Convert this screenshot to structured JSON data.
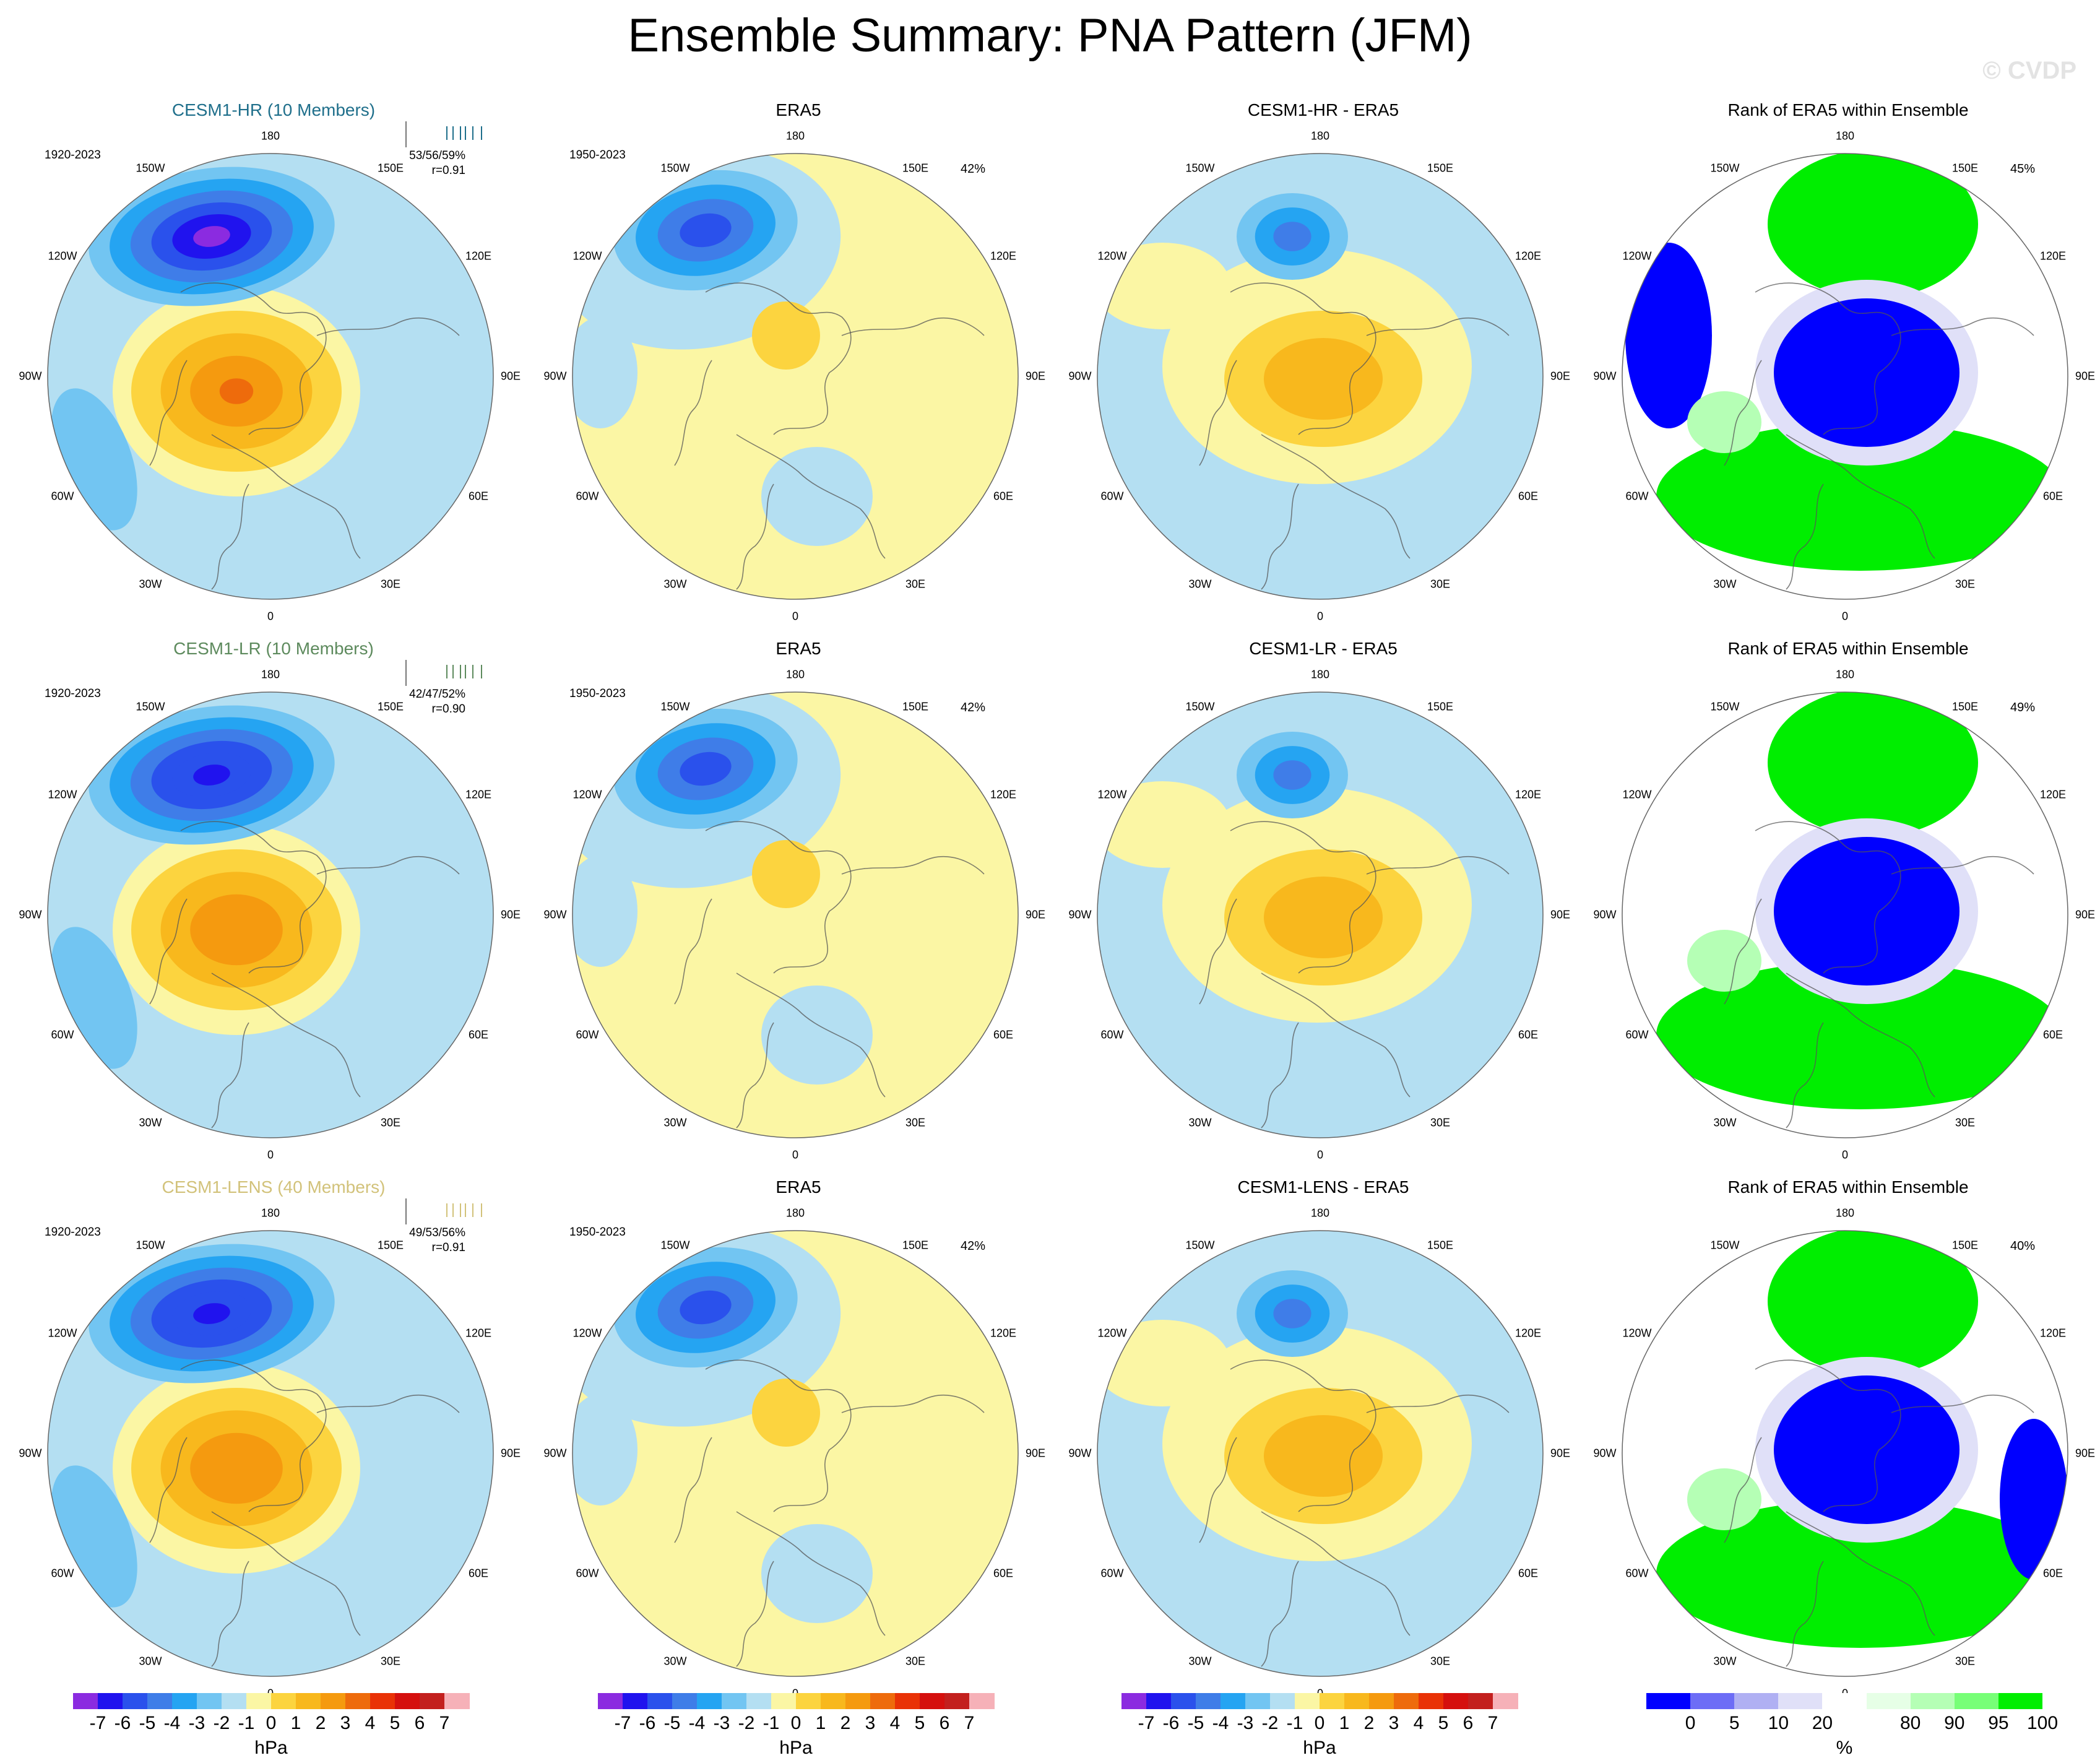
{
  "title": "Ensemble Summary: PNA Pattern (JFM)",
  "watermark": "© CVDP",
  "lon_labels": [
    "180",
    "150E",
    "120E",
    "90E",
    "60E",
    "30E",
    "0",
    "30W",
    "60W",
    "90W",
    "120W",
    "150W"
  ],
  "colors": {
    "diverging": [
      "#8b2be0",
      "#2013ee",
      "#2a51ec",
      "#3f7de8",
      "#25a4f2",
      "#72c5f2",
      "#b4dff2",
      "#fbf6a4",
      "#fcd43f",
      "#f8b81d",
      "#f59a0f",
      "#ee6b0c",
      "#e93206",
      "#d5100e",
      "#c3201e",
      "#f6b1b8"
    ],
    "rank": [
      "#0000ff",
      "#6d6df6",
      "#b0b0f3",
      "#e0e0f8",
      "#ffffff",
      "#e6ffe6",
      "#b5ffb5",
      "#77ff77",
      "#00ee00"
    ],
    "land_outline": "#555555"
  },
  "colorbars": {
    "hpa": {
      "ticks": [
        "-7",
        "-6",
        "-5",
        "-4",
        "-3",
        "-2",
        "-1",
        "0",
        "1",
        "2",
        "3",
        "4",
        "5",
        "6",
        "7"
      ],
      "unit": "hPa"
    },
    "rank": {
      "ticks": [
        "0",
        "5",
        "10",
        "20",
        "80",
        "90",
        "95",
        "100"
      ],
      "unit": "%"
    }
  },
  "rows": [
    {
      "model": "CESM1-HR (10 Members)",
      "model_color": "#1f6f8b",
      "model_years": "1920-2023",
      "stats": "53/56/59%",
      "r": "r=0.91",
      "obs_title": "ERA5",
      "obs_years": "1950-2023",
      "obs_pct": "42%",
      "diff_title": "CESM1-HR - ERA5",
      "rank_title": "Rank of ERA5 within Ensemble",
      "rank_pct": "45%"
    },
    {
      "model": "CESM1-LR (10 Members)",
      "model_color": "#5d8a5d",
      "model_years": "1920-2023",
      "stats": "42/47/52%",
      "r": "r=0.90",
      "obs_title": "ERA5",
      "obs_years": "1950-2023",
      "obs_pct": "42%",
      "diff_title": "CESM1-LR - ERA5",
      "rank_title": "Rank of ERA5 within Ensemble",
      "rank_pct": "49%"
    },
    {
      "model": "CESM1-LENS (40 Members)",
      "model_color": "#d2c27a",
      "model_years": "1920-2023",
      "stats": "49/53/56%",
      "r": "r=0.91",
      "obs_title": "ERA5",
      "obs_years": "1950-2023",
      "obs_pct": "42%",
      "diff_title": "CESM1-LENS - ERA5",
      "rank_title": "Rank of ERA5 within Ensemble",
      "rank_pct": "40%"
    }
  ]
}
